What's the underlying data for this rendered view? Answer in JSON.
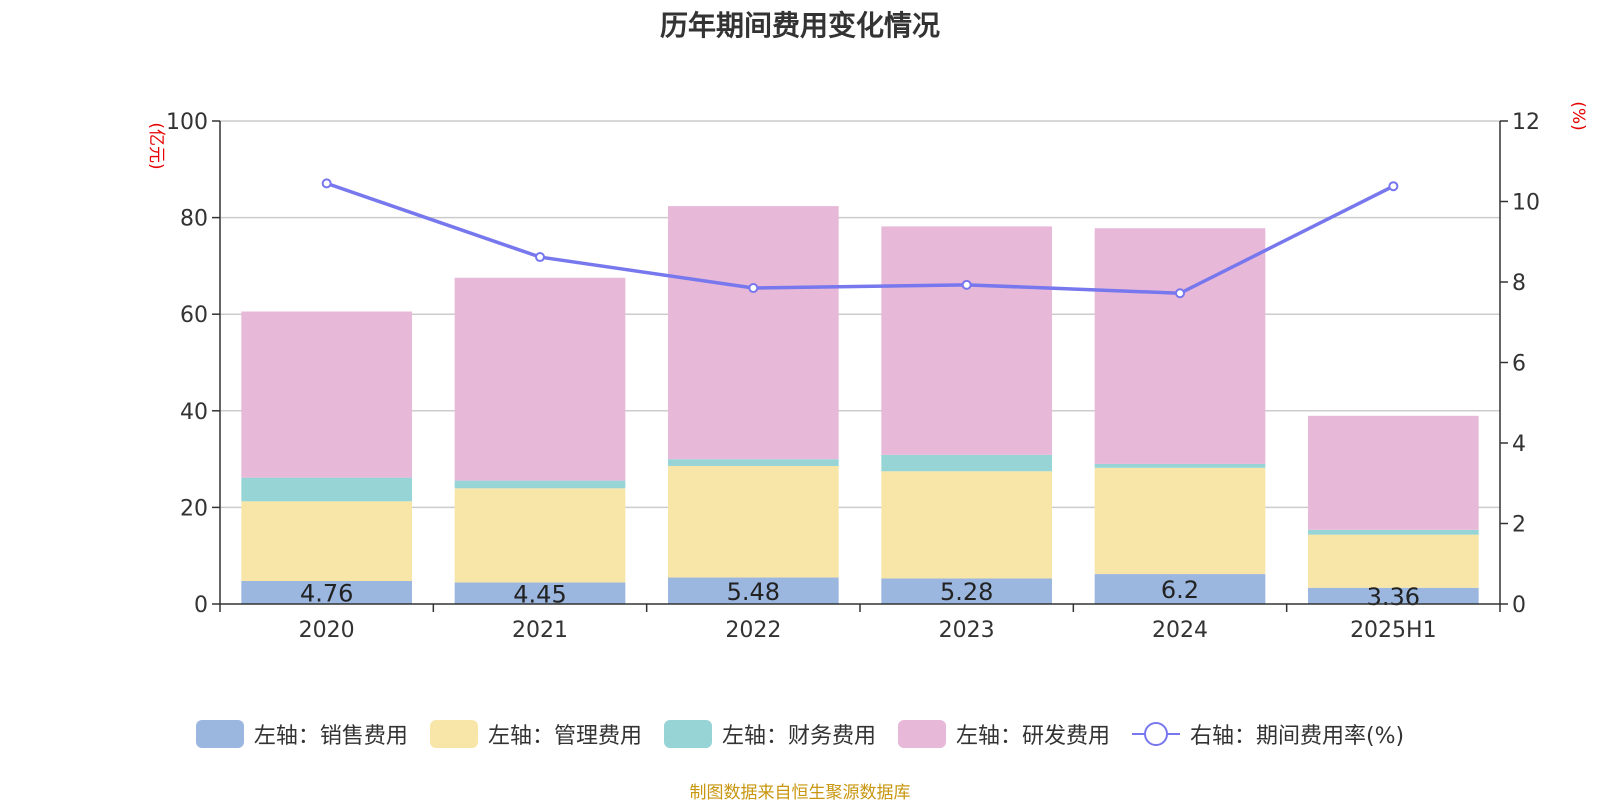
{
  "chart_data": {
    "type": "bar",
    "title": "历年期间费用变化情况",
    "categories": [
      "2020",
      "2021",
      "2022",
      "2023",
      "2024",
      "2025H1"
    ],
    "left_axis": {
      "unit": "(亿元)",
      "ylim": [
        0,
        100
      ],
      "ticks": [
        "0",
        "20",
        "40",
        "60",
        "80",
        "100"
      ]
    },
    "right_axis": {
      "unit": "(%)",
      "ylim": [
        0,
        12
      ],
      "ticks": [
        "0",
        "2",
        "4",
        "6",
        "8",
        "10",
        "12"
      ]
    },
    "grid": true,
    "legend_position": "bottom",
    "series": [
      {
        "name": "左轴：销售费用",
        "kind": "bar",
        "axis": "left",
        "color": "#9bb7e0",
        "values": [
          4.76,
          4.45,
          5.48,
          5.28,
          6.2,
          3.36
        ],
        "labels": [
          "4.76",
          "4.45",
          "5.48",
          "5.28",
          "6.2",
          "3.36"
        ]
      },
      {
        "name": "左轴：管理费用",
        "kind": "bar",
        "axis": "left",
        "color": "#f8e6a8",
        "values": [
          16.5,
          19.5,
          23.1,
          22.2,
          22.0,
          11.0
        ]
      },
      {
        "name": "左轴：财务费用",
        "kind": "bar",
        "axis": "left",
        "color": "#96d4d6",
        "values": [
          4.9,
          1.6,
          1.4,
          3.4,
          0.8,
          1.0
        ]
      },
      {
        "name": "左轴：研发费用",
        "kind": "bar",
        "axis": "left",
        "color": "#e8b8d9",
        "values": [
          34.4,
          42.0,
          52.4,
          47.3,
          48.8,
          23.6
        ]
      },
      {
        "name": "右轴：期间费用率(%)",
        "kind": "line",
        "axis": "right",
        "color": "#7777ee",
        "values": [
          10.45,
          8.62,
          7.85,
          7.93,
          7.72,
          10.38
        ]
      }
    ]
  },
  "source_note": "制图数据来自恒生聚源数据库"
}
